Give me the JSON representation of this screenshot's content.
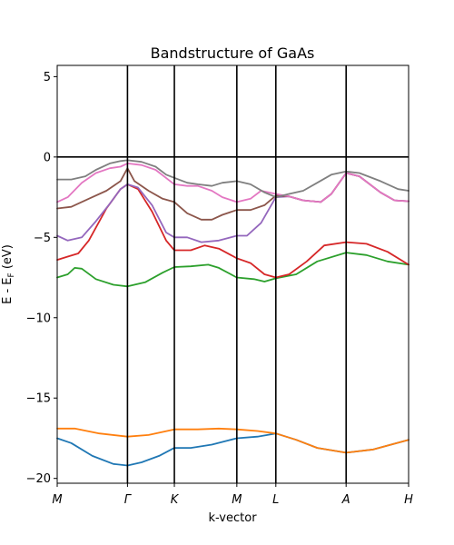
{
  "chart_data": {
    "type": "line",
    "title": "Bandstructure of GaAs",
    "xlabel": "k-vector",
    "ylabel": "E - E",
    "ylabel_sub": "F",
    "ylabel_unit": " (eV)",
    "ylim": [
      -20.3,
      5.7
    ],
    "yticks": [
      5,
      0,
      -5,
      -10,
      -15,
      -20
    ],
    "xlim": [
      0,
      5
    ],
    "kpoints": [
      {
        "label": "M",
        "x": 0
      },
      {
        "label": "Γ",
        "x": 1
      },
      {
        "label": "K",
        "x": 1.667
      },
      {
        "label": "M",
        "x": 2.556
      },
      {
        "label": "L",
        "x": 3.111
      },
      {
        "label": "A",
        "x": 4.111
      },
      {
        "label": "H",
        "x": 5
      }
    ],
    "zero_line": 0,
    "grid": false,
    "legend": "none",
    "series": [
      {
        "color": "#1f77b4",
        "points": [
          [
            0,
            -17.5
          ],
          [
            0.2,
            -17.8
          ],
          [
            0.5,
            -18.6
          ],
          [
            0.8,
            -19.1
          ],
          [
            1,
            -19.2
          ],
          [
            1.2,
            -19.0
          ],
          [
            1.45,
            -18.6
          ],
          [
            1.667,
            -18.1
          ],
          [
            1.9,
            -18.1
          ],
          [
            2.2,
            -17.9
          ],
          [
            2.556,
            -17.5
          ],
          [
            2.85,
            -17.4
          ],
          [
            3.111,
            -17.2
          ],
          [
            3.4,
            -17.6
          ],
          [
            3.7,
            -18.1
          ],
          [
            4.111,
            -18.4
          ],
          [
            4.5,
            -18.2
          ],
          [
            5,
            -17.6
          ]
        ]
      },
      {
        "color": "#ff7f0e",
        "points": [
          [
            0,
            -16.9
          ],
          [
            0.25,
            -16.9
          ],
          [
            0.6,
            -17.2
          ],
          [
            1,
            -17.4
          ],
          [
            1.3,
            -17.3
          ],
          [
            1.667,
            -16.95
          ],
          [
            2.0,
            -16.95
          ],
          [
            2.3,
            -16.9
          ],
          [
            2.556,
            -16.95
          ],
          [
            2.85,
            -17.05
          ],
          [
            3.111,
            -17.2
          ],
          [
            3.4,
            -17.6
          ],
          [
            3.7,
            -18.1
          ],
          [
            4.111,
            -18.4
          ],
          [
            4.5,
            -18.2
          ],
          [
            5,
            -17.6
          ]
        ]
      },
      {
        "color": "#2ca02c",
        "points": [
          [
            0,
            -7.5
          ],
          [
            0.15,
            -7.3
          ],
          [
            0.25,
            -6.9
          ],
          [
            0.35,
            -6.95
          ],
          [
            0.55,
            -7.6
          ],
          [
            0.8,
            -7.95
          ],
          [
            1,
            -8.05
          ],
          [
            1.25,
            -7.8
          ],
          [
            1.5,
            -7.2
          ],
          [
            1.667,
            -6.85
          ],
          [
            1.9,
            -6.8
          ],
          [
            2.15,
            -6.7
          ],
          [
            2.3,
            -6.9
          ],
          [
            2.556,
            -7.5
          ],
          [
            2.8,
            -7.6
          ],
          [
            2.95,
            -7.75
          ],
          [
            3.111,
            -7.55
          ],
          [
            3.4,
            -7.3
          ],
          [
            3.7,
            -6.5
          ],
          [
            4.111,
            -5.95
          ],
          [
            4.4,
            -6.1
          ],
          [
            4.7,
            -6.5
          ],
          [
            5,
            -6.7
          ]
        ]
      },
      {
        "color": "#d62728",
        "points": [
          [
            0,
            -6.4
          ],
          [
            0.15,
            -6.2
          ],
          [
            0.3,
            -6.0
          ],
          [
            0.45,
            -5.2
          ],
          [
            0.7,
            -3.2
          ],
          [
            0.9,
            -2.0
          ],
          [
            1,
            -1.7
          ],
          [
            1.15,
            -2.0
          ],
          [
            1.35,
            -3.4
          ],
          [
            1.55,
            -5.2
          ],
          [
            1.667,
            -5.8
          ],
          [
            1.9,
            -5.8
          ],
          [
            2.1,
            -5.5
          ],
          [
            2.3,
            -5.7
          ],
          [
            2.556,
            -6.3
          ],
          [
            2.75,
            -6.6
          ],
          [
            2.95,
            -7.3
          ],
          [
            3.111,
            -7.5
          ],
          [
            3.3,
            -7.3
          ],
          [
            3.55,
            -6.5
          ],
          [
            3.8,
            -5.5
          ],
          [
            4.111,
            -5.3
          ],
          [
            4.4,
            -5.4
          ],
          [
            4.7,
            -5.9
          ],
          [
            5,
            -6.7
          ]
        ]
      },
      {
        "color": "#9467bd",
        "points": [
          [
            0,
            -4.9
          ],
          [
            0.15,
            -5.2
          ],
          [
            0.35,
            -5.0
          ],
          [
            0.55,
            -4.0
          ],
          [
            0.75,
            -2.9
          ],
          [
            0.9,
            -2.0
          ],
          [
            1,
            -1.7
          ],
          [
            1.15,
            -1.9
          ],
          [
            1.35,
            -3.0
          ],
          [
            1.55,
            -4.7
          ],
          [
            1.667,
            -5.0
          ],
          [
            1.85,
            -5.0
          ],
          [
            2.05,
            -5.3
          ],
          [
            2.3,
            -5.2
          ],
          [
            2.556,
            -4.9
          ],
          [
            2.7,
            -4.9
          ],
          [
            2.9,
            -4.1
          ],
          [
            3.111,
            -2.5
          ],
          [
            3.3,
            -2.45
          ],
          [
            3.5,
            -2.7
          ],
          [
            3.75,
            -2.8
          ],
          [
            3.9,
            -2.3
          ],
          [
            4.111,
            -1.0
          ],
          [
            4.3,
            -1.2
          ],
          [
            4.6,
            -2.2
          ],
          [
            4.8,
            -2.7
          ],
          [
            5,
            -2.75
          ]
        ]
      },
      {
        "color": "#8c564b",
        "points": [
          [
            0,
            -3.2
          ],
          [
            0.2,
            -3.1
          ],
          [
            0.45,
            -2.6
          ],
          [
            0.7,
            -2.1
          ],
          [
            0.9,
            -1.5
          ],
          [
            1,
            -0.7
          ],
          [
            1.1,
            -1.5
          ],
          [
            1.3,
            -2.1
          ],
          [
            1.5,
            -2.6
          ],
          [
            1.667,
            -2.8
          ],
          [
            1.85,
            -3.5
          ],
          [
            2.05,
            -3.9
          ],
          [
            2.2,
            -3.9
          ],
          [
            2.35,
            -3.6
          ],
          [
            2.556,
            -3.3
          ],
          [
            2.75,
            -3.3
          ],
          [
            2.95,
            -3.0
          ],
          [
            3.111,
            -2.4
          ],
          [
            3.3,
            -2.45
          ],
          [
            3.5,
            -2.7
          ],
          [
            3.75,
            -2.8
          ],
          [
            3.9,
            -2.3
          ],
          [
            4.111,
            -1.0
          ],
          [
            4.3,
            -1.2
          ],
          [
            4.6,
            -2.2
          ],
          [
            4.8,
            -2.7
          ],
          [
            5,
            -2.75
          ]
        ]
      },
      {
        "color": "#e377c2",
        "points": [
          [
            0,
            -2.8
          ],
          [
            0.15,
            -2.5
          ],
          [
            0.35,
            -1.6
          ],
          [
            0.55,
            -1.0
          ],
          [
            0.75,
            -0.7
          ],
          [
            0.9,
            -0.6
          ],
          [
            1,
            -0.4
          ],
          [
            1.2,
            -0.5
          ],
          [
            1.4,
            -0.8
          ],
          [
            1.667,
            -1.7
          ],
          [
            1.85,
            -1.8
          ],
          [
            2.0,
            -1.8
          ],
          [
            2.2,
            -2.1
          ],
          [
            2.35,
            -2.5
          ],
          [
            2.556,
            -2.8
          ],
          [
            2.75,
            -2.6
          ],
          [
            2.9,
            -2.1
          ],
          [
            3.111,
            -2.3
          ],
          [
            3.3,
            -2.45
          ],
          [
            3.5,
            -2.7
          ],
          [
            3.75,
            -2.8
          ],
          [
            3.9,
            -2.3
          ],
          [
            4.111,
            -1.0
          ],
          [
            4.3,
            -1.2
          ],
          [
            4.6,
            -2.2
          ],
          [
            4.8,
            -2.7
          ],
          [
            5,
            -2.75
          ]
        ]
      },
      {
        "color": "#7f7f7f",
        "points": [
          [
            0,
            -1.4
          ],
          [
            0.2,
            -1.4
          ],
          [
            0.4,
            -1.2
          ],
          [
            0.55,
            -0.8
          ],
          [
            0.75,
            -0.4
          ],
          [
            0.9,
            -0.25
          ],
          [
            1,
            -0.2
          ],
          [
            1.2,
            -0.3
          ],
          [
            1.4,
            -0.6
          ],
          [
            1.55,
            -1.1
          ],
          [
            1.667,
            -1.3
          ],
          [
            1.85,
            -1.6
          ],
          [
            2.0,
            -1.7
          ],
          [
            2.2,
            -1.8
          ],
          [
            2.35,
            -1.6
          ],
          [
            2.556,
            -1.5
          ],
          [
            2.75,
            -1.7
          ],
          [
            2.95,
            -2.2
          ],
          [
            3.111,
            -2.5
          ],
          [
            3.3,
            -2.3
          ],
          [
            3.5,
            -2.1
          ],
          [
            3.7,
            -1.6
          ],
          [
            3.9,
            -1.1
          ],
          [
            4.111,
            -0.9
          ],
          [
            4.3,
            -1.0
          ],
          [
            4.6,
            -1.5
          ],
          [
            4.85,
            -2.0
          ],
          [
            5,
            -2.1
          ]
        ]
      }
    ]
  }
}
